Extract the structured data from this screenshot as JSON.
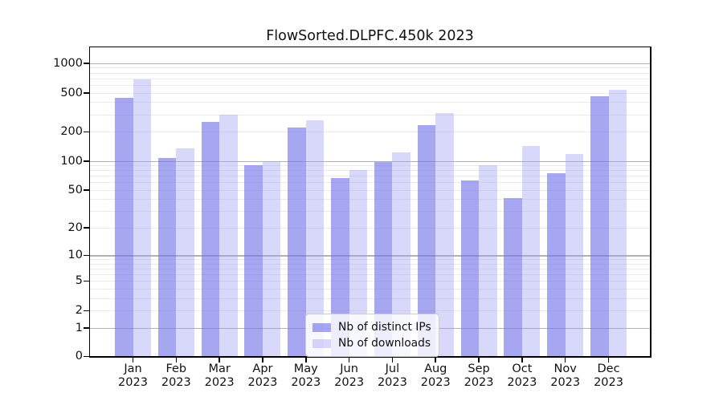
{
  "title": "FlowSorted.DLPFC.450k 2023",
  "legend": {
    "items": [
      {
        "label": "Nb of distinct IPs",
        "series": "ips"
      },
      {
        "label": "Nb of downloads",
        "series": "downloads"
      }
    ]
  },
  "colors": {
    "ips_bar": "rgba(119,119,234,0.65)",
    "downloads_bar": "rgba(158,158,242,0.40)",
    "ips_bar_hex_on_white": "#a7a7f1",
    "downloads_bar_hex_on_white": "#d8d8fa",
    "grid_major": "#b2b2b2",
    "grid_minor": "#ebebee",
    "axis": "#000000",
    "text": "#111111",
    "legend_background": "rgba(255,255,255,0.8)",
    "legend_border": "#cccccc"
  },
  "chart_data": {
    "type": "bar",
    "title": "FlowSorted.DLPFC.450k 2023",
    "month_labels": [
      "Jan",
      "Feb",
      "Mar",
      "Apr",
      "May",
      "Jun",
      "Jul",
      "Aug",
      "Sep",
      "Oct",
      "Nov",
      "Dec"
    ],
    "year_label": "2023",
    "categories": [
      "Jan 2023",
      "Feb 2023",
      "Mar 2023",
      "Apr 2023",
      "May 2023",
      "Jun 2023",
      "Jul 2023",
      "Aug 2023",
      "Sep 2023",
      "Oct 2023",
      "Nov 2023",
      "Dec 2023"
    ],
    "series": [
      {
        "name": "Nb of distinct IPs",
        "values": [
          445,
          108,
          252,
          90,
          219,
          66,
          97,
          235,
          63,
          41,
          75,
          458
        ]
      },
      {
        "name": "Nb of downloads",
        "values": [
          685,
          135,
          299,
          98,
          263,
          81,
          123,
          310,
          90,
          142,
          118,
          530
        ]
      }
    ],
    "xlabel": "",
    "ylabel": "",
    "y_scale": "log10(value+1)",
    "y_ticks": [
      0,
      1,
      2,
      5,
      10,
      20,
      50,
      100,
      200,
      500,
      1000
    ],
    "y_minor_gridlines": [
      2,
      3,
      4,
      5,
      6,
      7,
      8,
      9,
      20,
      30,
      40,
      50,
      60,
      70,
      80,
      90,
      200,
      300,
      400,
      500,
      600,
      700,
      800,
      900
    ],
    "y_major_gridlines": [
      1,
      10,
      100,
      1000
    ],
    "ylim": [
      0,
      1380
    ],
    "grid": "horizontal",
    "legend_position": "lower center-right inside plot"
  }
}
